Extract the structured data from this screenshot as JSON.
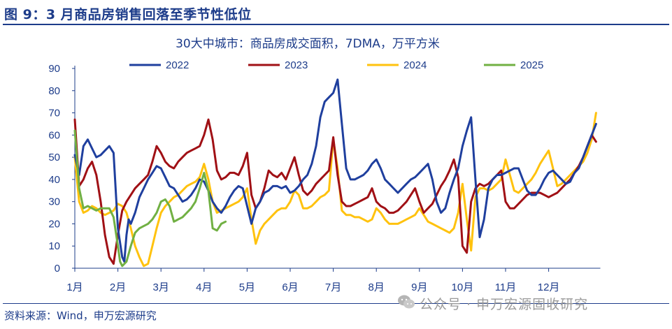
{
  "figure": {
    "title": "图 9：3 月商品房销售回落至季节性低位",
    "source": "资料来源：Wind，申万宏源研究",
    "watermark": "公众号 · 申万宏源固收研究"
  },
  "colors": {
    "2022": "#1f3f9e",
    "2023": "#a01015",
    "2024": "#ffc20e",
    "2025": "#71b043",
    "text": "#1d3c8a"
  },
  "chart_data": {
    "type": "line",
    "title": "30大中城市：商品房成交面积，7DMA，万平方米",
    "xlabel": "",
    "ylabel": "",
    "ylim": [
      0,
      90
    ],
    "yticks": [
      0,
      10,
      20,
      30,
      40,
      50,
      60,
      70,
      80,
      90
    ],
    "xlim": [
      0,
      12.2
    ],
    "xticks": [
      {
        "label": "1月",
        "value": 0
      },
      {
        "label": "2月",
        "value": 1
      },
      {
        "label": "3月",
        "value": 2
      },
      {
        "label": "4月",
        "value": 3
      },
      {
        "label": "5月",
        "value": 4
      },
      {
        "label": "6月",
        "value": 5
      },
      {
        "label": "7月",
        "value": 6
      },
      {
        "label": "8月",
        "value": 7
      },
      {
        "label": "9月",
        "value": 8
      },
      {
        "label": "10月",
        "value": 9
      },
      {
        "label": "11月",
        "value": 10
      },
      {
        "label": "12月",
        "value": 11
      }
    ],
    "grid": false,
    "legend": "top",
    "series": [
      {
        "name": "2022",
        "x": [
          0,
          0.1,
          0.2,
          0.3,
          0.4,
          0.5,
          0.6,
          0.7,
          0.8,
          0.9,
          1.0,
          1.1,
          1.15,
          1.2,
          1.25,
          1.3,
          1.4,
          1.5,
          1.6,
          1.7,
          1.8,
          1.9,
          2.0,
          2.1,
          2.2,
          2.3,
          2.4,
          2.5,
          2.6,
          2.7,
          2.8,
          2.9,
          3.0,
          3.1,
          3.2,
          3.3,
          3.4,
          3.5,
          3.6,
          3.7,
          3.8,
          3.9,
          4.0,
          4.1,
          4.2,
          4.3,
          4.4,
          4.5,
          4.6,
          4.7,
          4.8,
          4.9,
          5.0,
          5.1,
          5.2,
          5.3,
          5.4,
          5.5,
          5.6,
          5.7,
          5.8,
          5.9,
          6.0,
          6.1,
          6.2,
          6.3,
          6.4,
          6.5,
          6.6,
          6.7,
          6.8,
          6.9,
          7.0,
          7.1,
          7.2,
          7.3,
          7.4,
          7.5,
          7.6,
          7.7,
          7.8,
          7.9,
          8.0,
          8.1,
          8.2,
          8.3,
          8.4,
          8.5,
          8.6,
          8.7,
          8.8,
          8.9,
          9.0,
          9.1,
          9.2,
          9.3,
          9.4,
          9.5,
          9.6,
          9.7,
          9.8,
          9.9,
          10.0,
          10.1,
          10.2,
          10.3,
          10.4,
          10.5,
          10.6,
          10.7,
          10.8,
          10.9,
          11.0,
          11.1,
          11.2,
          11.3,
          11.4,
          11.5,
          11.6,
          11.7,
          11.8,
          11.9,
          12.0,
          12.1
        ],
        "values": [
          51,
          42,
          55,
          58,
          54,
          50,
          51,
          53,
          55,
          52,
          18,
          5,
          3,
          15,
          22,
          20,
          25,
          32,
          36,
          40,
          43,
          46,
          45,
          41,
          37,
          36,
          33,
          30,
          31,
          33,
          36,
          40,
          39,
          35,
          30,
          27,
          25,
          28,
          32,
          35,
          37,
          36,
          28,
          20,
          27,
          30,
          34,
          35,
          37,
          37,
          36,
          37,
          34,
          35,
          37,
          40,
          42,
          47,
          55,
          68,
          75,
          77,
          79,
          85,
          65,
          45,
          40,
          40,
          41,
          42,
          44,
          47,
          49,
          45,
          40,
          38,
          36,
          34,
          36,
          38,
          40,
          41,
          43,
          45,
          47,
          40,
          30,
          25,
          27,
          34,
          40,
          45,
          55,
          62,
          68,
          40,
          14,
          22,
          36,
          40,
          42,
          42,
          43,
          44,
          45,
          45,
          40,
          35,
          33,
          33,
          36,
          40,
          43,
          44,
          42,
          40,
          38,
          39,
          43,
          45,
          50,
          55,
          60,
          65
        ]
      },
      {
        "name": "2023",
        "x": [
          0,
          0.1,
          0.2,
          0.3,
          0.4,
          0.5,
          0.6,
          0.7,
          0.8,
          0.9,
          1.0,
          1.1,
          1.2,
          1.3,
          1.4,
          1.5,
          1.6,
          1.7,
          1.8,
          1.9,
          2.0,
          2.1,
          2.2,
          2.3,
          2.4,
          2.5,
          2.6,
          2.7,
          2.8,
          2.9,
          3.0,
          3.1,
          3.2,
          3.3,
          3.4,
          3.5,
          3.6,
          3.7,
          3.8,
          3.9,
          4.0,
          4.1,
          4.2,
          4.3,
          4.4,
          4.5,
          4.6,
          4.7,
          4.8,
          4.9,
          5.0,
          5.1,
          5.2,
          5.3,
          5.4,
          5.5,
          5.6,
          5.7,
          5.8,
          5.9,
          6.0,
          6.1,
          6.2,
          6.3,
          6.4,
          6.5,
          6.6,
          6.7,
          6.8,
          6.9,
          7.0,
          7.1,
          7.2,
          7.3,
          7.4,
          7.5,
          7.6,
          7.7,
          7.8,
          7.9,
          8.0,
          8.1,
          8.2,
          8.3,
          8.4,
          8.5,
          8.6,
          8.7,
          8.8,
          8.9,
          9.0,
          9.1,
          9.2,
          9.3,
          9.4,
          9.5,
          9.6,
          9.7,
          9.8,
          9.9,
          10.0,
          10.1,
          10.2,
          10.3,
          10.4,
          10.5,
          10.6,
          10.7,
          10.8,
          10.9,
          11.0,
          11.1,
          11.2,
          11.3,
          11.4,
          11.5,
          11.6,
          11.7,
          11.8,
          11.9,
          12.0,
          12.1
        ],
        "values": [
          67,
          37,
          40,
          45,
          48,
          42,
          30,
          15,
          5,
          2,
          15,
          26,
          30,
          33,
          36,
          38,
          40,
          42,
          48,
          55,
          52,
          48,
          46,
          45,
          48,
          50,
          52,
          53,
          54,
          55,
          60,
          67,
          58,
          44,
          40,
          41,
          43,
          43,
          42,
          46,
          52,
          33,
          27,
          30,
          36,
          44,
          42,
          41,
          43,
          40,
          45,
          50,
          42,
          35,
          33,
          35,
          38,
          40,
          42,
          44,
          59,
          42,
          30,
          28,
          28,
          29,
          30,
          31,
          32,
          36,
          30,
          28,
          27,
          25,
          25,
          26,
          28,
          30,
          33,
          36,
          30,
          25,
          27,
          29,
          33,
          37,
          40,
          44,
          49,
          41,
          10,
          7,
          30,
          36,
          38,
          37,
          38,
          40,
          42,
          44,
          30,
          27,
          27,
          29,
          31,
          33,
          34,
          34,
          34,
          33,
          32,
          33,
          34,
          36,
          38,
          40,
          43,
          46,
          50,
          55,
          60,
          57
        ]
      },
      {
        "name": "2024",
        "x": [
          0,
          0.1,
          0.2,
          0.3,
          0.4,
          0.5,
          0.6,
          0.7,
          0.8,
          0.9,
          1.0,
          1.1,
          1.2,
          1.3,
          1.4,
          1.5,
          1.6,
          1.7,
          1.8,
          1.9,
          2.0,
          2.1,
          2.2,
          2.3,
          2.4,
          2.5,
          2.6,
          2.7,
          2.8,
          2.9,
          3.0,
          3.1,
          3.2,
          3.3,
          3.4,
          3.5,
          3.6,
          3.7,
          3.8,
          3.9,
          4.0,
          4.1,
          4.2,
          4.3,
          4.4,
          4.5,
          4.6,
          4.7,
          4.8,
          4.9,
          5.0,
          5.1,
          5.2,
          5.3,
          5.4,
          5.5,
          5.6,
          5.7,
          5.8,
          5.9,
          6.0,
          6.1,
          6.2,
          6.3,
          6.4,
          6.5,
          6.6,
          6.7,
          6.8,
          6.9,
          7.0,
          7.1,
          7.2,
          7.3,
          7.4,
          7.5,
          7.6,
          7.7,
          7.8,
          7.9,
          8.0,
          8.1,
          8.2,
          8.3,
          8.4,
          8.5,
          8.6,
          8.7,
          8.8,
          8.9,
          9.0,
          9.1,
          9.2,
          9.3,
          9.4,
          9.5,
          9.6,
          9.7,
          9.8,
          9.9,
          10.0,
          10.1,
          10.2,
          10.3,
          10.4,
          10.5,
          10.6,
          10.7,
          10.8,
          10.9,
          11.0,
          11.1,
          11.2,
          11.3,
          11.4,
          11.5,
          11.6,
          11.7,
          11.8,
          11.9,
          12.0,
          12.1
        ],
        "values": [
          50,
          30,
          25,
          26,
          28,
          27,
          25,
          24,
          25,
          26,
          29,
          28,
          25,
          18,
          10,
          5,
          1,
          2,
          10,
          18,
          25,
          28,
          30,
          32,
          33,
          35,
          37,
          38,
          39,
          41,
          47,
          40,
          30,
          25,
          26,
          27,
          28,
          29,
          30,
          32,
          36,
          22,
          11,
          17,
          20,
          22,
          24,
          26,
          27,
          27,
          30,
          35,
          33,
          27,
          27,
          28,
          30,
          32,
          33,
          35,
          58,
          45,
          26,
          24,
          24,
          23,
          23,
          22,
          21,
          22,
          27,
          25,
          22,
          20,
          20,
          20,
          21,
          22,
          23,
          24,
          27,
          24,
          21,
          20,
          19,
          18,
          17,
          16,
          18,
          25,
          38,
          22,
          8,
          32,
          36,
          36,
          35,
          36,
          38,
          40,
          49,
          42,
          35,
          34,
          36,
          38,
          40,
          43,
          47,
          50,
          53,
          45,
          37,
          38,
          40,
          42,
          44,
          46,
          48,
          52,
          58,
          70
        ]
      },
      {
        "name": "2025",
        "x": [
          0,
          0.1,
          0.2,
          0.3,
          0.4,
          0.5,
          0.6,
          0.7,
          0.8,
          0.9,
          1.0,
          1.05,
          1.1,
          1.2,
          1.3,
          1.4,
          1.5,
          1.6,
          1.7,
          1.8,
          1.9,
          2.0,
          2.1,
          2.2,
          2.3,
          2.4,
          2.5,
          2.6,
          2.7,
          2.8,
          2.9,
          3.0,
          3.1,
          3.2,
          3.3,
          3.4,
          3.5
        ],
        "values": [
          62,
          36,
          27,
          28,
          27,
          26,
          27,
          27,
          27,
          23,
          10,
          3,
          1,
          3,
          10,
          16,
          18,
          19,
          20,
          22,
          25,
          30,
          31,
          28,
          21,
          22,
          23,
          25,
          27,
          30,
          36,
          43,
          35,
          18,
          17,
          20,
          21
        ]
      }
    ]
  }
}
